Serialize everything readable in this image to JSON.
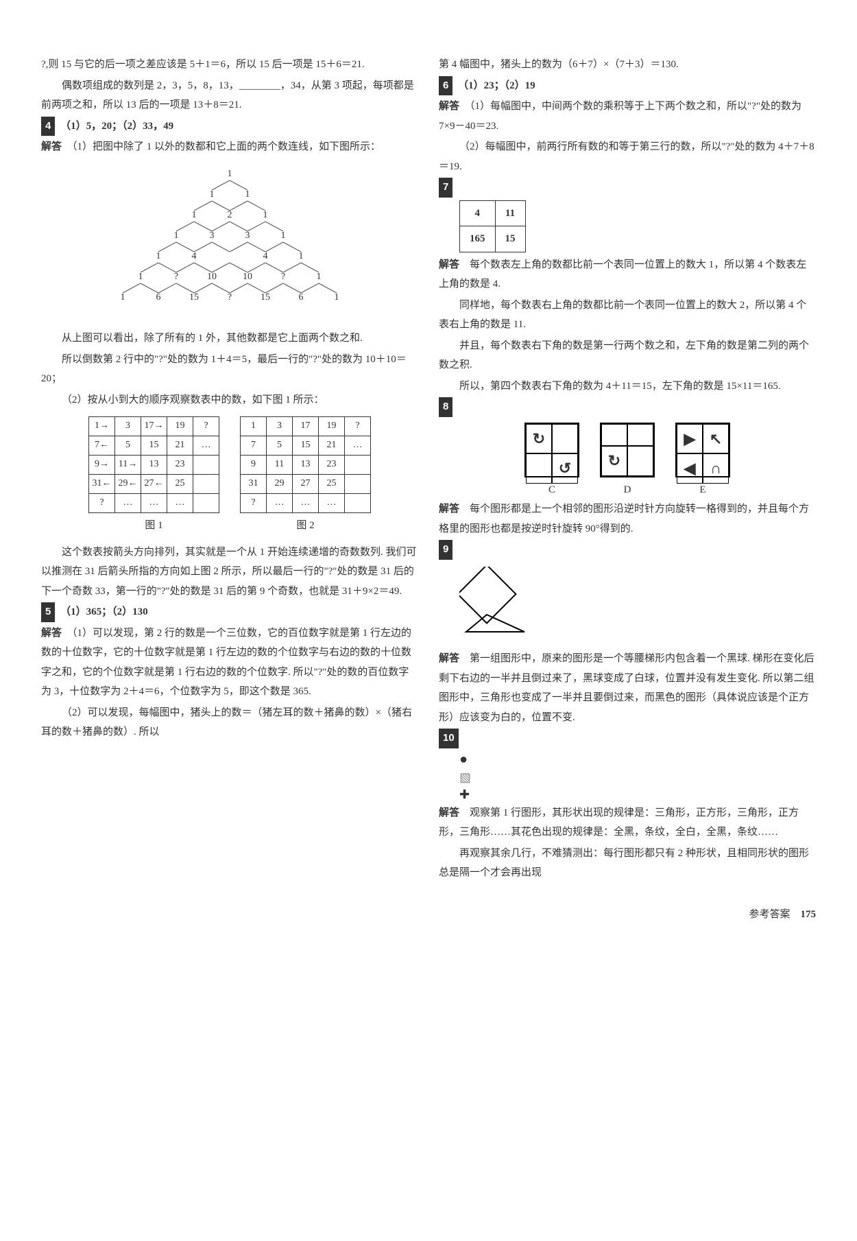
{
  "colors": {
    "text": "#333333",
    "bg": "#ffffff",
    "qnum_bg": "#333333",
    "qnum_fg": "#ffffff",
    "border": "#333333"
  },
  "typography": {
    "body_fontsize_pt": 11,
    "line_height": 1.9,
    "font_family": "SimSun"
  },
  "left": {
    "p1": "?,则 15 与它的后一项之差应该是 5＋1＝6，所以 15 后一项是 15＋6＝21.",
    "p2": "偶数项组成的数列是 2，3，5，8，13，________，34，从第 3 项起，每项都是前两项之和，所以 13 后的一项是 13＋8＝21.",
    "q4_num": "4",
    "q4_ans": "（1）5，20；（2）33，49",
    "q4_exp_label": "解答",
    "q4_p1": "（1）把图中除了 1 以外的数都和它上面的两个数连线，如下图所示：",
    "pascal": {
      "type": "tree",
      "rows": [
        [
          "1"
        ],
        [
          "1",
          "1"
        ],
        [
          "1",
          "2",
          "1"
        ],
        [
          "1",
          "3",
          "3",
          "1"
        ],
        [
          "1",
          "4",
          "",
          "4",
          "1"
        ],
        [
          "1",
          "?",
          "10",
          "10",
          "?",
          "1"
        ],
        [
          "1",
          "6",
          "15",
          "?",
          "15",
          "6",
          "1"
        ]
      ],
      "node_fontsize": 14,
      "line_color": "#555555"
    },
    "q4_p2": "从上图可以看出，除了所有的 1 外，其他数都是它上面两个数之和.",
    "q4_p3": "所以倒数第 2 行中的\"?\"处的数为 1＋4＝5，最后一行的\"?\"处的数为 10＋10＝20；",
    "q4_p4": "（2）按从小到大的顺序观察数表中的数，如下图 1 所示：",
    "tables": {
      "type": "table",
      "fig1_caption": "图 1",
      "fig2_caption": "图 2",
      "fig1": [
        [
          "1→",
          "3",
          "17→",
          "19",
          "?"
        ],
        [
          "7←",
          "5",
          "15",
          "21",
          "…"
        ],
        [
          "9→",
          "11→",
          "13",
          "23",
          ""
        ],
        [
          "31←",
          "29←",
          "27←",
          "25",
          ""
        ],
        [
          "?",
          "…",
          "…",
          "…",
          ""
        ]
      ],
      "fig2": [
        [
          "1",
          "3",
          "17",
          "19",
          "?"
        ],
        [
          "7",
          "5",
          "15",
          "21",
          "…"
        ],
        [
          "9",
          "11",
          "13",
          "23",
          ""
        ],
        [
          "31",
          "29",
          "27",
          "25",
          ""
        ],
        [
          "?",
          "…",
          "…",
          "…",
          ""
        ]
      ],
      "cell_fontsize": 14,
      "border_color": "#333333"
    },
    "q4_p5": "这个数表按箭头方向排列，其实就是一个从 1 开始连续递增的奇数数列. 我们可以推测在 31 后箭头所指的方向如上图 2 所示，所以最后一行的\"?\"处的数是 31 后的下一个奇数 33，第一行的\"?\"处的数是 31 后的第 9 个奇数，也就是 31＋9×2＝49.",
    "q5_num": "5",
    "q5_ans": "（1）365；（2）130",
    "q5_exp_label": "解答",
    "q5_p1": "（1）可以发现，第 2 行的数是一个三位数，它的百位数字就是第 1 行左边的数的十位数字，它的十位数字就是第 1 行左边的数的个位数字与右边的数的十位数字之和，它的个位数字就是第 1 行右边的数的个位数字. 所以\"?\"处的数的百位数字为 3，十位数字为 2＋4＝6，个位数字为 5，即这个数是 365.",
    "q5_p2": "（2）可以发现，每幅图中，猪头上的数＝（猪左耳的数＋猪鼻的数）×（猪右耳的数＋猪鼻的数）. 所以"
  },
  "right": {
    "p1": "第 4 幅图中，猪头上的数为（6＋7）×（7＋3）＝130.",
    "q6_num": "6",
    "q6_ans": "（1）23；（2）19",
    "q6_exp_label": "解答",
    "q6_p1": "（1）每幅图中，中间两个数的乘积等于上下两个数之和，所以\"?\"处的数为 7×9－40＝23.",
    "q6_p2": "（2）每幅图中，前两行所有数的和等于第三行的数，所以\"?\"处的数为 4＋7＋8＝19.",
    "q7_num": "7",
    "q7_table": {
      "type": "table",
      "rows": [
        [
          "4",
          "11"
        ],
        [
          "165",
          "15"
        ]
      ],
      "border_color": "#333333"
    },
    "q7_exp_label": "解答",
    "q7_p1": "每个数表左上角的数都比前一个表同一位置上的数大 1，所以第 4 个数表左上角的数是 4.",
    "q7_p2": "同样地，每个数表右上角的数都比前一个表同一位置上的数大 2，所以第 4 个表右上角的数是 11.",
    "q7_p3": "并且，每个数表右下角的数是第一行两个数之和，左下角的数是第二列的两个数之积.",
    "q7_p4": "所以，第四个数表右下角的数为 4＋11＝15，左下角的数是 15×11＝165.",
    "q8_num": "8",
    "q8_shapes": {
      "type": "infographic",
      "boxes": [
        {
          "label": "C",
          "cells": [
            "↻",
            "",
            "",
            "↺"
          ]
        },
        {
          "label": "D",
          "cells": [
            "",
            "",
            "↻",
            ""
          ]
        },
        {
          "label": "E",
          "cells": [
            "▶",
            "↖",
            "◀",
            "∩"
          ]
        }
      ],
      "box_border": "#000000",
      "glyph_fontsize": 22
    },
    "q8_exp_label": "解答",
    "q8_p1": "每个图形都是上一个相邻的图形沿逆时针方向旋转一格得到的，并且每个方格里的图形也都是按逆时针旋转 90°得到的.",
    "q9_num": "9",
    "q9_shape": {
      "type": "diagram",
      "desc": "square-rotated-with-triangle",
      "stroke": "#000000"
    },
    "q9_exp_label": "解答",
    "q9_p1": "第一组图形中，原来的图形是一个等腰梯形内包含着一个黑球. 梯形在变化后剩下右边的一半并且倒过来了，黑球变成了白球，位置并没有发生变化. 所以第二组图形中，三角形也变成了一半并且要倒过来，而黑色的图形（具体说应该是个正方形）应该变为白的，位置不变.",
    "q10_num": "10",
    "q10_icons": {
      "type": "infographic",
      "items": [
        "●",
        "▧",
        "✚"
      ],
      "colors": [
        "#000000",
        "#888888",
        "#ffffff"
      ]
    },
    "q10_exp_label": "解答",
    "q10_p1": "观察第 1 行图形，其形状出现的规律是：三角形，正方形，三角形，正方形，三角形……其花色出现的规律是：全黑，条纹，全白，全黑，条纹……",
    "q10_p2": "再观察其余几行，不难猜测出：每行图形都只有 2 种形状，且相同形状的图形总是隔一个才会再出现"
  },
  "footer": {
    "label": "参考答案",
    "page": "175"
  }
}
